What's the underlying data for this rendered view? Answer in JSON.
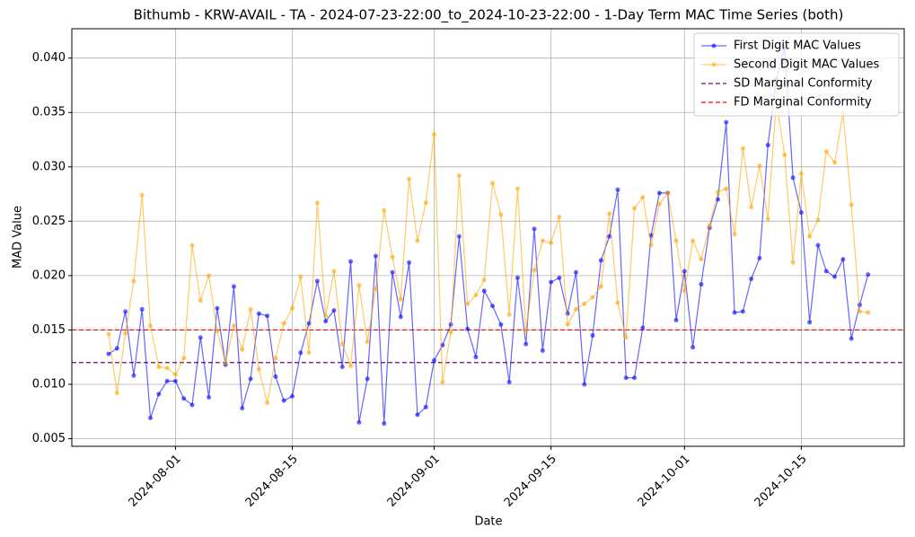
{
  "chart_data": {
    "type": "line",
    "title": "Bithumb - KRW-AVAIL - TA - 2024-07-23-22:00_to_2024-10-23-22:00 - 1-Day Term MAC Time Series (both)",
    "xlabel": "Date",
    "ylabel": "MAD Value",
    "x": [
      "2024-07-24",
      "2024-07-25",
      "2024-07-26",
      "2024-07-27",
      "2024-07-28",
      "2024-07-29",
      "2024-07-30",
      "2024-07-31",
      "2024-08-01",
      "2024-08-02",
      "2024-08-03",
      "2024-08-04",
      "2024-08-05",
      "2024-08-06",
      "2024-08-07",
      "2024-08-08",
      "2024-08-09",
      "2024-08-10",
      "2024-08-11",
      "2024-08-12",
      "2024-08-13",
      "2024-08-14",
      "2024-08-15",
      "2024-08-16",
      "2024-08-17",
      "2024-08-18",
      "2024-08-19",
      "2024-08-20",
      "2024-08-21",
      "2024-08-22",
      "2024-08-23",
      "2024-08-24",
      "2024-08-25",
      "2024-08-26",
      "2024-08-27",
      "2024-08-28",
      "2024-08-29",
      "2024-08-30",
      "2024-08-31",
      "2024-09-01",
      "2024-09-02",
      "2024-09-03",
      "2024-09-04",
      "2024-09-05",
      "2024-09-06",
      "2024-09-07",
      "2024-09-08",
      "2024-09-09",
      "2024-09-10",
      "2024-09-11",
      "2024-09-12",
      "2024-09-13",
      "2024-09-14",
      "2024-09-15",
      "2024-09-16",
      "2024-09-17",
      "2024-09-18",
      "2024-09-19",
      "2024-09-20",
      "2024-09-21",
      "2024-09-22",
      "2024-09-23",
      "2024-09-24",
      "2024-09-25",
      "2024-09-26",
      "2024-09-27",
      "2024-09-28",
      "2024-09-29",
      "2024-09-30",
      "2024-10-01",
      "2024-10-02",
      "2024-10-03",
      "2024-10-04",
      "2024-10-05",
      "2024-10-06",
      "2024-10-07",
      "2024-10-08",
      "2024-10-09",
      "2024-10-10",
      "2024-10-11",
      "2024-10-12",
      "2024-10-13",
      "2024-10-14",
      "2024-10-15",
      "2024-10-16",
      "2024-10-17",
      "2024-10-18",
      "2024-10-19",
      "2024-10-20",
      "2024-10-21",
      "2024-10-22",
      "2024-10-23"
    ],
    "series": [
      {
        "name": "First Digit MAC Values",
        "color": "#0000ff",
        "values": [
          0.0128,
          0.0133,
          0.0167,
          0.0108,
          0.0169,
          0.0069,
          0.0091,
          0.0103,
          0.0103,
          0.0087,
          0.0081,
          0.0143,
          0.0088,
          0.017,
          0.0118,
          0.019,
          0.0078,
          0.0105,
          0.0165,
          0.0163,
          0.0107,
          0.0085,
          0.0089,
          0.0129,
          0.0156,
          0.0195,
          0.0158,
          0.0168,
          0.0116,
          0.0213,
          0.0065,
          0.0105,
          0.0218,
          0.0064,
          0.0203,
          0.0162,
          0.0212,
          0.0072,
          0.0079,
          0.0122,
          0.0136,
          0.0155,
          0.0236,
          0.0151,
          0.0125,
          0.0186,
          0.0172,
          0.0155,
          0.0102,
          0.0198,
          0.0137,
          0.0243,
          0.0131,
          0.0194,
          0.0198,
          0.0165,
          0.0203,
          0.01,
          0.0145,
          0.0214,
          0.0236,
          0.0279,
          0.0106,
          0.0106,
          0.0152,
          0.0237,
          0.0276,
          0.0276,
          0.0159,
          0.0204,
          0.0134,
          0.0192,
          0.0244,
          0.027,
          0.0341,
          0.0166,
          0.0167,
          0.0197,
          0.0216,
          0.032,
          0.038,
          0.041,
          0.029,
          0.0258,
          0.0157,
          0.0228,
          0.0204,
          0.0199,
          0.0215,
          0.0142,
          0.0173,
          0.0201
        ]
      },
      {
        "name": "Second Digit MAC Values",
        "color": "#ffa500",
        "values": [
          0.0146,
          0.0092,
          0.0147,
          0.0195,
          0.0274,
          0.0154,
          0.0116,
          0.0115,
          0.0109,
          0.0124,
          0.0228,
          0.0177,
          0.02,
          0.0149,
          0.012,
          0.0154,
          0.0132,
          0.0169,
          0.0114,
          0.0083,
          0.0124,
          0.0156,
          0.017,
          0.0199,
          0.0129,
          0.0267,
          0.0163,
          0.0204,
          0.0137,
          0.0117,
          0.0191,
          0.0139,
          0.0188,
          0.026,
          0.0217,
          0.0178,
          0.0289,
          0.0232,
          0.0267,
          0.033,
          0.0102,
          0.0148,
          0.0292,
          0.0174,
          0.0182,
          0.0196,
          0.0285,
          0.0256,
          0.0164,
          0.028,
          0.0149,
          0.0205,
          0.0232,
          0.023,
          0.0254,
          0.0155,
          0.0169,
          0.0174,
          0.018,
          0.019,
          0.0257,
          0.0175,
          0.0143,
          0.0262,
          0.0272,
          0.0228,
          0.0266,
          0.0276,
          0.0232,
          0.0186,
          0.0232,
          0.0215,
          0.0246,
          0.0277,
          0.028,
          0.0238,
          0.0317,
          0.0263,
          0.0301,
          0.0252,
          0.036,
          0.0311,
          0.0212,
          0.0294,
          0.0236,
          0.0251,
          0.0314,
          0.0304,
          0.035,
          0.0265,
          0.0167,
          0.0166
        ]
      }
    ],
    "reference_lines": [
      {
        "name": "SD Marginal Conformity",
        "value": 0.012,
        "color": "#800080"
      },
      {
        "name": "FD Marginal Conformity",
        "value": 0.015,
        "color": "#ff0000"
      }
    ],
    "xlim": [
      "2024-07-19T14:00",
      "2024-10-27T08:00"
    ],
    "xticks": [
      "2024-08-01",
      "2024-08-15",
      "2024-09-01",
      "2024-09-15",
      "2024-10-01",
      "2024-10-15"
    ],
    "ylim": [
      0.0043,
      0.0427
    ],
    "yticks": [
      {
        "value": 0.005,
        "label": "0.005"
      },
      {
        "value": 0.01,
        "label": "0.010"
      },
      {
        "value": 0.015,
        "label": "0.015"
      },
      {
        "value": 0.02,
        "label": "0.020"
      },
      {
        "value": 0.025,
        "label": "0.025"
      },
      {
        "value": 0.03,
        "label": "0.030"
      },
      {
        "value": 0.035,
        "label": "0.035"
      },
      {
        "value": 0.04,
        "label": "0.040"
      }
    ],
    "grid": true,
    "legend": "upper right"
  }
}
